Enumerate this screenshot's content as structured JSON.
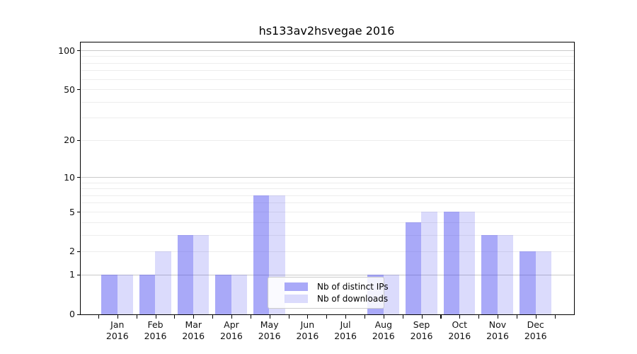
{
  "title": "hs133av2hsvegae 2016",
  "chart_data": {
    "type": "bar",
    "title": "hs133av2hsvegae 2016",
    "categories": [
      "Jan 2016",
      "Feb 2016",
      "Mar 2016",
      "Apr 2016",
      "May 2016",
      "Jun 2016",
      "Jul 2016",
      "Aug 2016",
      "Sep 2016",
      "Oct 2016",
      "Nov 2016",
      "Dec 2016"
    ],
    "months": [
      "Jan",
      "Feb",
      "Mar",
      "Apr",
      "May",
      "Jun",
      "Jul",
      "Aug",
      "Sep",
      "Oct",
      "Nov",
      "Dec"
    ],
    "year_line": "2016",
    "series": [
      {
        "name": "Nb of distinct IPs",
        "fill": "rgba(64,64,240,0.45)",
        "approx_solid_color": "#a9a9f7",
        "values": [
          1,
          1,
          3,
          1,
          7,
          0,
          0,
          1,
          4,
          5,
          3,
          2
        ]
      },
      {
        "name": "Nb of downloads",
        "fill": "rgba(64,64,240,0.19)",
        "approx_solid_color": "#dbdbf8",
        "values": [
          1,
          2,
          3,
          1,
          7,
          0,
          0,
          1,
          5,
          5,
          3,
          2
        ]
      }
    ],
    "yscale": "log1p",
    "ylim": [
      0,
      116
    ],
    "y_ticks": [
      0,
      1,
      2,
      5,
      10,
      20,
      50,
      100
    ],
    "major_grid_values": [
      1,
      10,
      100
    ],
    "minor_grid_values": [
      2,
      3,
      4,
      5,
      6,
      7,
      8,
      9,
      20,
      30,
      40,
      50,
      60,
      70,
      80,
      90
    ],
    "grid": true,
    "legend": {
      "entries": [
        "Nb of distinct IPs",
        "Nb of downloads"
      ],
      "position": "lower center"
    },
    "colors": {
      "background": "#ffffff",
      "axis": "#000000",
      "major_grid": "#c9c9c9",
      "minor_grid": "#ededed",
      "bar_dark": "#a9a9f7",
      "bar_light": "#dbdbf8"
    }
  }
}
